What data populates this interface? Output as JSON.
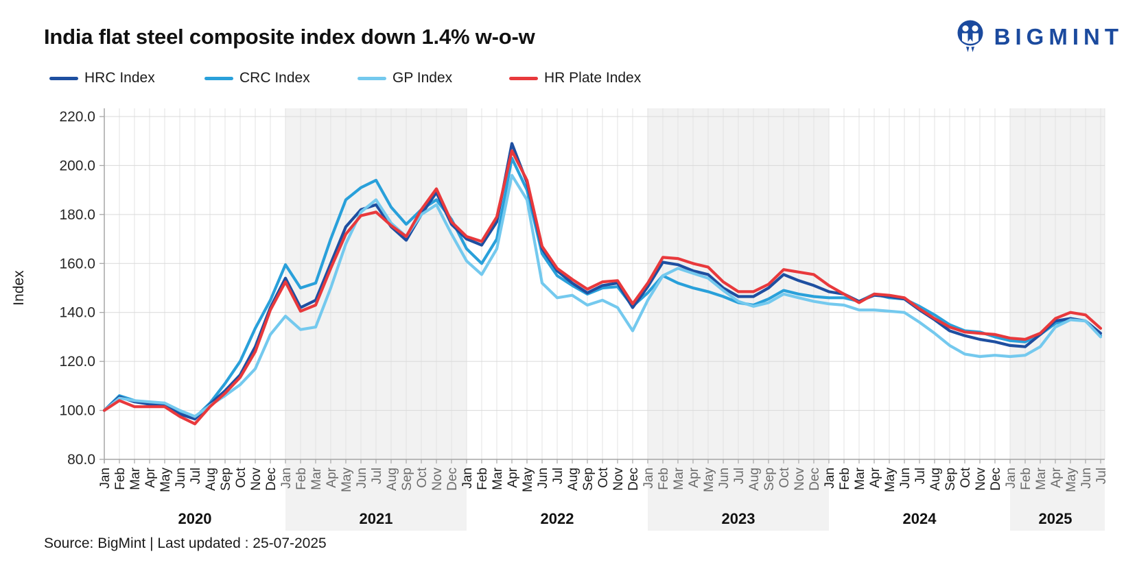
{
  "header": {
    "title": "India flat steel composite index down 1.4% w-o-w",
    "brand": "BIGMINT"
  },
  "legend": [
    {
      "label": "HRC Index",
      "color": "#1e4fa0"
    },
    {
      "label": "CRC Index",
      "color": "#29a0da"
    },
    {
      "label": "GP Index",
      "color": "#74c9ee"
    },
    {
      "label": "HR Plate Index",
      "color": "#e8393c"
    }
  ],
  "chart_data": {
    "type": "line",
    "title": "India flat steel composite index down 1.4% w-o-w",
    "xlabel": "",
    "ylabel": "Index",
    "ylim": [
      80,
      220
    ],
    "ytick_step": 20,
    "grid": true,
    "legend_position": "top",
    "x_start": "2020-01",
    "x_end": "2025-07",
    "n_points": 67,
    "month_labels": [
      "Jan",
      "Feb",
      "Mar",
      "Apr",
      "May",
      "Jun",
      "Jul",
      "Aug",
      "Sep",
      "Oct",
      "Nov",
      "Dec"
    ],
    "years": [
      2020,
      2021,
      2022,
      2023,
      2024,
      2025
    ],
    "banded_years": [
      2021,
      2023,
      2025
    ],
    "band_color": "#f2f2f2",
    "series": [
      {
        "name": "CRC Index",
        "color": "#29a0da",
        "values": [
          100,
          106,
          104,
          103,
          102.5,
          99,
          97,
          103,
          111,
          120,
          133.5,
          145,
          159.5,
          150,
          152,
          170,
          186,
          191,
          194,
          183,
          176,
          182,
          186,
          178,
          166,
          160,
          170,
          203,
          190,
          164,
          155,
          151,
          147.5,
          150,
          150.5,
          142.5,
          148,
          155,
          152,
          150,
          148.5,
          146.5,
          144,
          143,
          145.5,
          149,
          147.5,
          146.5,
          146,
          146,
          144.5,
          147.5,
          146,
          145.5,
          142.5,
          139,
          135,
          132.5,
          132,
          130,
          128.5,
          128,
          131,
          135.5,
          137.5,
          136.5,
          130.5
        ]
      },
      {
        "name": "HRC Index",
        "color": "#1e4fa0",
        "values": [
          100,
          105.5,
          103.5,
          102.5,
          102,
          98.5,
          96.5,
          102.5,
          108,
          114.5,
          126,
          142,
          154,
          142,
          145,
          160,
          175,
          182,
          184,
          175,
          169.5,
          180,
          189,
          176,
          170,
          167.5,
          177,
          209,
          193,
          166,
          157,
          152,
          148,
          151,
          152,
          142,
          150.5,
          160.5,
          159.5,
          157,
          155.5,
          150,
          146.5,
          146.5,
          150,
          155.5,
          153,
          151,
          148.5,
          147.5,
          144.5,
          147,
          146.5,
          145.5,
          141,
          137,
          132.5,
          130.5,
          129,
          128,
          126.5,
          126,
          131,
          136.5,
          137.5,
          136.5,
          131.5
        ]
      },
      {
        "name": "GP Index",
        "color": "#74c9ee",
        "values": [
          100,
          105,
          104,
          103.5,
          103,
          100,
          97.5,
          102,
          106,
          110.5,
          117,
          131,
          138.5,
          133,
          134,
          150,
          168,
          181,
          186,
          176.5,
          171,
          180,
          184,
          172,
          161,
          155.5,
          166,
          196,
          186,
          152,
          146,
          147,
          143,
          145,
          142,
          132.5,
          145,
          155,
          158,
          156,
          154,
          149,
          144.5,
          142.5,
          144,
          147.5,
          146,
          144.5,
          143.5,
          143,
          141,
          141,
          140.5,
          140,
          136,
          131.5,
          126.5,
          123,
          122,
          122.5,
          122,
          122.5,
          126,
          134,
          137,
          136.5,
          130
        ]
      },
      {
        "name": "HR Plate Index",
        "color": "#e8393c",
        "values": [
          100,
          104,
          101.5,
          101.5,
          101.5,
          97.5,
          94.5,
          101.5,
          107,
          113.5,
          124,
          141,
          152.5,
          140.5,
          143,
          158,
          172,
          179.5,
          181,
          175.5,
          171,
          182,
          190.5,
          177,
          171,
          169,
          179,
          206,
          194,
          167,
          158,
          153.5,
          149.5,
          152.5,
          153,
          143.5,
          152,
          162.5,
          162,
          160,
          158.5,
          152.5,
          148.5,
          148.5,
          151.5,
          157.5,
          156.5,
          155.5,
          151,
          147.5,
          144,
          147.5,
          147,
          146,
          141.5,
          137.5,
          134,
          132,
          131.5,
          131,
          129.5,
          129,
          131.5,
          137.5,
          140,
          139,
          133.5
        ]
      }
    ]
  },
  "footer": {
    "source": "Source: BigMint | Last updated : 25-07-2025"
  }
}
